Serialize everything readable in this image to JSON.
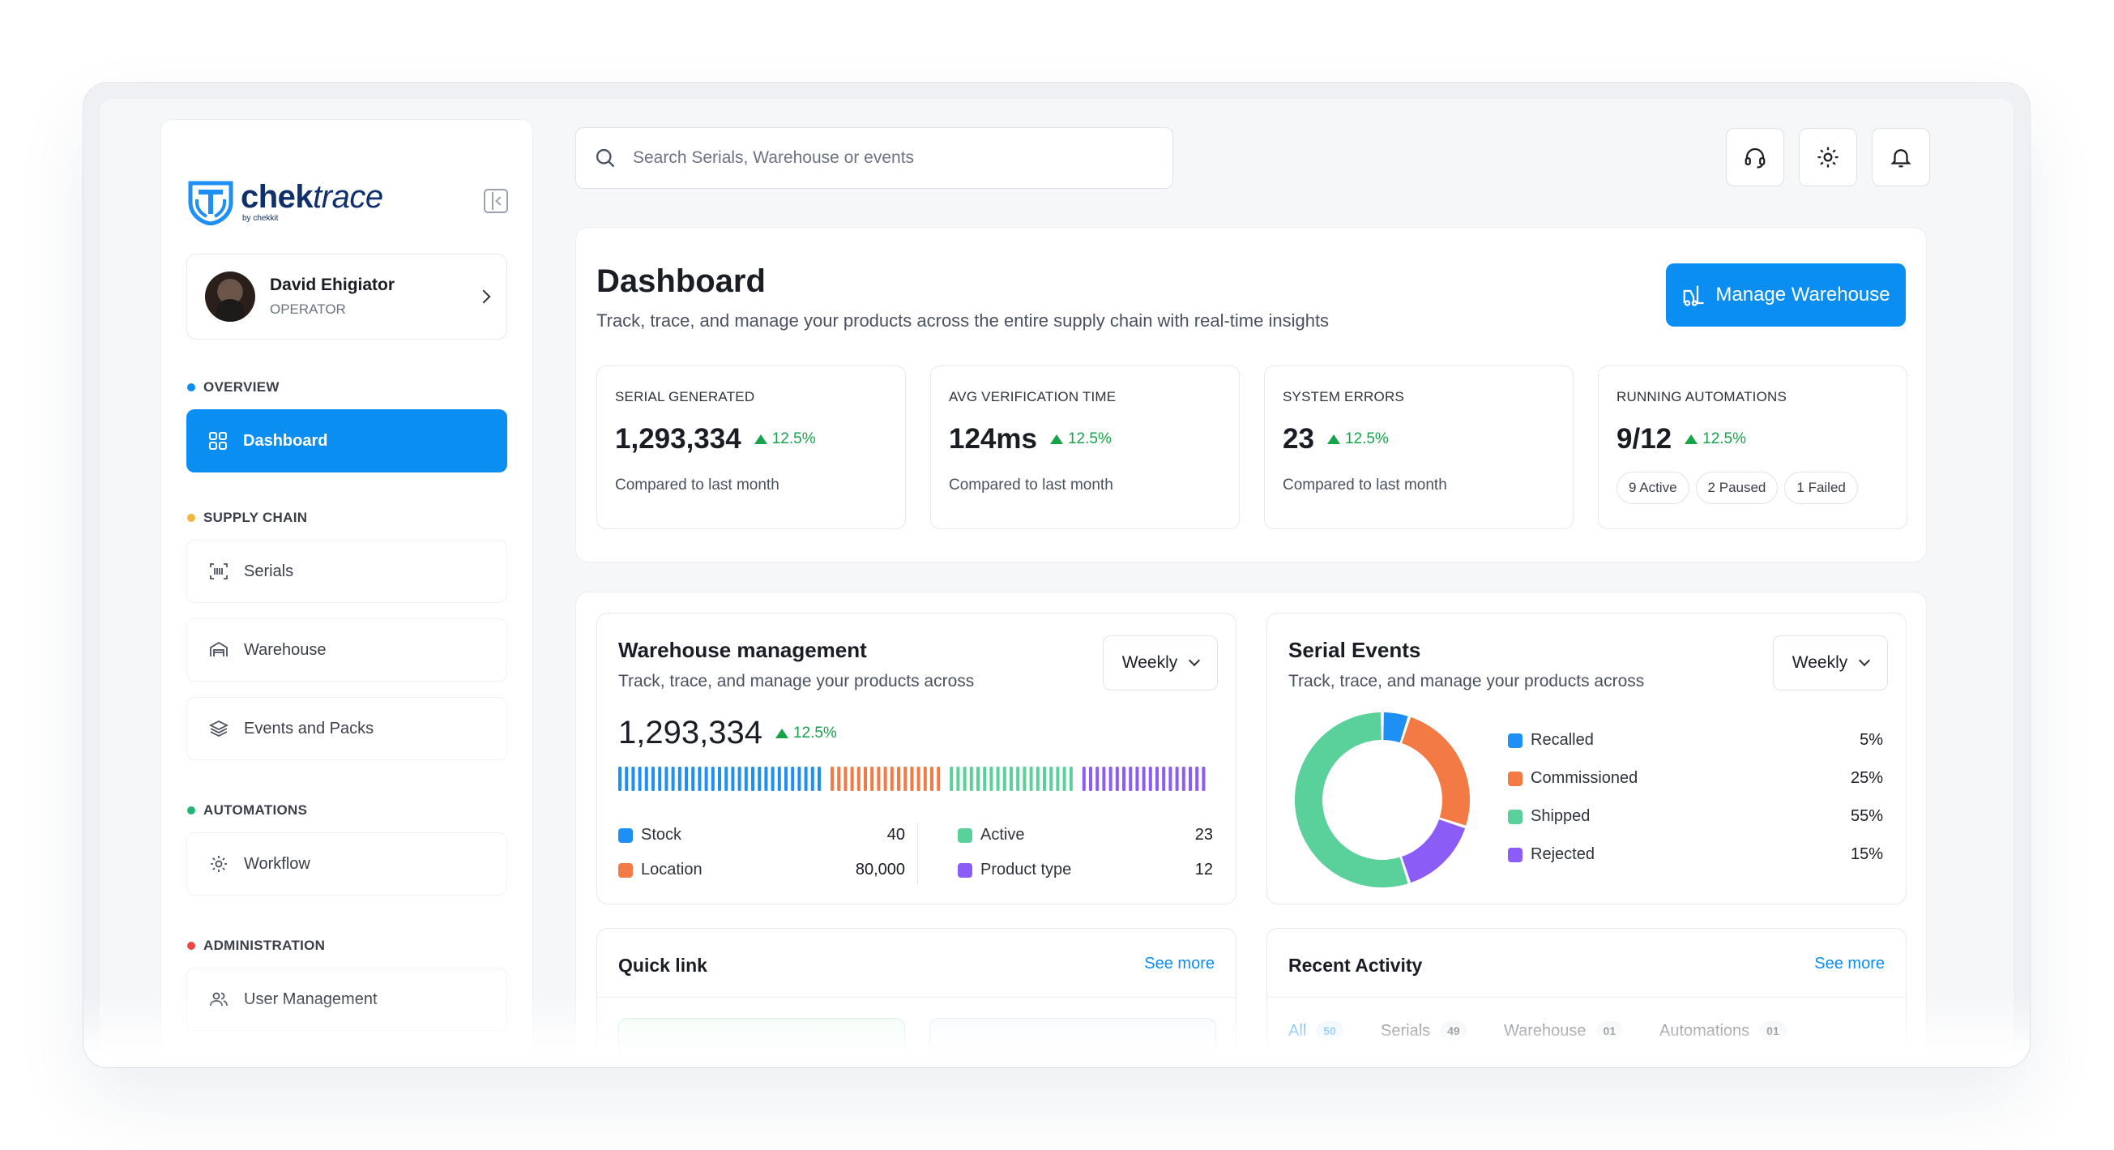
{
  "brand": {
    "name_bold": "chek",
    "name_italic": "trace",
    "sub": "by chekkit"
  },
  "user": {
    "name": "David Ehigiator",
    "role": "OPERATOR"
  },
  "sidebar": {
    "sections": [
      {
        "label": "OVERVIEW",
        "color": "#0a8ef2"
      },
      {
        "label": "SUPPLY CHAIN",
        "color": "#f5b63c"
      },
      {
        "label": "AUTOMATIONS",
        "color": "#22b573"
      },
      {
        "label": "ADMINISTRATION",
        "color": "#ef4444"
      }
    ],
    "items": [
      {
        "label": "Dashboard",
        "icon": "grid-icon",
        "active": true
      },
      {
        "label": "Serials",
        "icon": "barcode-scan-icon"
      },
      {
        "label": "Warehouse",
        "icon": "warehouse-icon"
      },
      {
        "label": "Events and Packs",
        "icon": "layers-icon"
      },
      {
        "label": "Workflow",
        "icon": "gear-icon"
      },
      {
        "label": "User Management",
        "icon": "users-icon"
      }
    ]
  },
  "search": {
    "placeholder": "Search Serials, Warehouse or events"
  },
  "header_icons": [
    "headset-icon",
    "gear-icon",
    "bell-icon"
  ],
  "dashboard": {
    "title": "Dashboard",
    "subtitle": "Track, trace, and manage your products across the entire supply chain with real-time insights",
    "manage_button": "Manage Warehouse",
    "stats": [
      {
        "label": "SERIAL GENERATED",
        "value": "1,293,334",
        "trend": "12.5%",
        "foot": "Compared to last month"
      },
      {
        "label": "AVG VERIFICATION TIME",
        "value": "124ms",
        "trend": "12.5%",
        "foot": "Compared to last month"
      },
      {
        "label": "SYSTEM ERRORS",
        "value": "23",
        "trend": "12.5%",
        "foot": "Compared to last month"
      },
      {
        "label": "RUNNING AUTOMATIONS",
        "value": "9/12",
        "trend": "12.5%",
        "pills": [
          "9 Active",
          "2 Paused",
          "1 Failed"
        ]
      }
    ]
  },
  "warehouse_mgmt": {
    "title": "Warehouse management",
    "subtitle": "Track, trace, and manage your products across",
    "period": "Weekly",
    "value": "1,293,334",
    "trend": "12.5%",
    "segments": [
      {
        "count": 31,
        "color": "#1e90f5"
      },
      {
        "count": 17,
        "color": "#f47a45"
      },
      {
        "count": 19,
        "color": "#5ad19a"
      },
      {
        "count": 19,
        "color": "#8b5cf6"
      }
    ],
    "legend": [
      {
        "label": "Stock",
        "value": "40",
        "color": "#1e90f5"
      },
      {
        "label": "Location",
        "value": "80,000",
        "color": "#f47a45"
      },
      {
        "label": "Active",
        "value": "23",
        "color": "#5ad19a"
      },
      {
        "label": "Product type",
        "value": "12",
        "color": "#8b5cf6"
      }
    ]
  },
  "serial_events": {
    "title": "Serial Events",
    "subtitle": "Track, trace, and manage your products across",
    "period": "Weekly",
    "chart_data": {
      "type": "pie",
      "categories": [
        "Recalled",
        "Commissioned",
        "Shipped",
        "Rejected"
      ],
      "values": [
        5,
        25,
        55,
        15
      ],
      "labels": [
        "5%",
        "25%",
        "55%",
        "15%"
      ],
      "colors": [
        "#1e90f5",
        "#f47a45",
        "#5ad19a",
        "#8b5cf6"
      ]
    }
  },
  "quick_link": {
    "title": "Quick link",
    "see_more": "See more"
  },
  "recent_activity": {
    "title": "Recent Activity",
    "see_more": "See more",
    "tabs": [
      {
        "label": "All",
        "count": "50",
        "active": true
      },
      {
        "label": "Serials",
        "count": "49"
      },
      {
        "label": "Warehouse",
        "count": "01"
      },
      {
        "label": "Automations",
        "count": "01"
      }
    ]
  }
}
